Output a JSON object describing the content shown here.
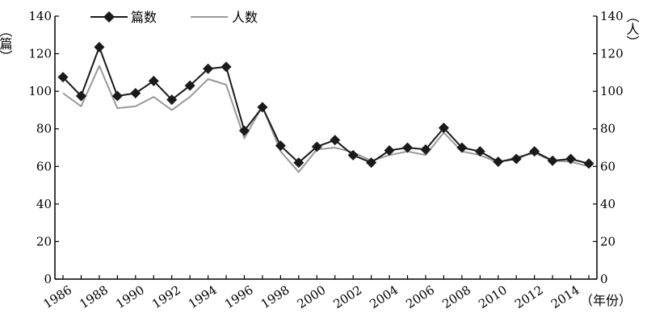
{
  "chart_data": {
    "type": "line",
    "title": "",
    "x": [
      1986,
      1987,
      1988,
      1989,
      1990,
      1991,
      1992,
      1993,
      1994,
      1995,
      1996,
      1997,
      1998,
      1999,
      2000,
      2001,
      2002,
      2003,
      2004,
      2005,
      2006,
      2007,
      2008,
      2009,
      2010,
      2011,
      2012,
      2013,
      2014,
      2015
    ],
    "x_tick_labels": [
      "1986",
      "1988",
      "1990",
      "1992",
      "1994",
      "1996",
      "1998",
      "2000",
      "2002",
      "2004",
      "2006",
      "2008",
      "2010",
      "2012",
      "2014"
    ],
    "xlabel": "（年份）",
    "ylabel_left": "（篇）",
    "ylabel_right": "（人）",
    "ylim": [
      0,
      140
    ],
    "y_ticks": [
      0,
      20,
      40,
      60,
      80,
      100,
      120,
      140
    ],
    "grid": false,
    "legend": "top-left",
    "series": [
      {
        "name": "篇数",
        "color": "#1a1a1a",
        "marker": "diamond",
        "values": [
          107.5,
          97.5,
          123.5,
          97.5,
          99,
          105.5,
          95.5,
          103,
          112,
          113,
          79,
          91.5,
          71,
          62,
          70.5,
          74,
          66,
          62,
          68.5,
          70,
          69,
          80.5,
          70,
          68,
          62.5,
          64,
          68,
          63,
          64,
          61.5
        ]
      },
      {
        "name": "人数",
        "color": "#999999",
        "marker": "none",
        "values": [
          99,
          92,
          113.5,
          91,
          92,
          97,
          90,
          97,
          106.5,
          103.5,
          75,
          92,
          68,
          57,
          69,
          70,
          67.5,
          63,
          66,
          68,
          66,
          78,
          68,
          66,
          62,
          65,
          67,
          63,
          62.5,
          60
        ]
      }
    ]
  }
}
